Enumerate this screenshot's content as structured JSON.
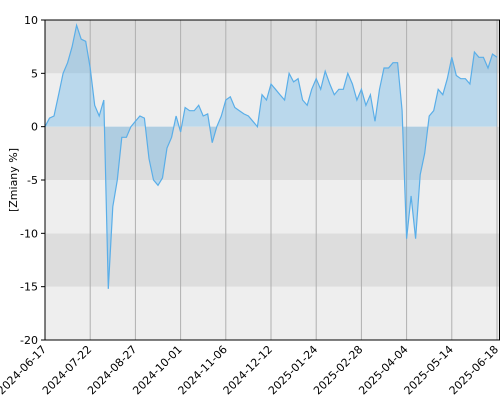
{
  "chart_data": {
    "type": "area",
    "y_label": "[Zmiany %]",
    "categories": [
      "2024-06-17",
      null,
      null,
      null,
      null,
      null,
      null,
      null,
      null,
      null,
      "2024-07-22",
      null,
      null,
      null,
      null,
      null,
      null,
      null,
      null,
      null,
      "2024-08-27",
      null,
      null,
      null,
      null,
      null,
      null,
      null,
      null,
      null,
      "2024-10-01",
      null,
      null,
      null,
      null,
      null,
      null,
      null,
      null,
      null,
      "2024-11-06",
      null,
      null,
      null,
      null,
      null,
      null,
      null,
      null,
      null,
      "2024-12-12",
      null,
      null,
      null,
      null,
      null,
      null,
      null,
      null,
      null,
      "2025-01-24",
      null,
      null,
      null,
      null,
      null,
      null,
      null,
      null,
      null,
      "2025-02-28",
      null,
      null,
      null,
      null,
      null,
      null,
      null,
      null,
      null,
      "2025-04-04",
      null,
      null,
      null,
      null,
      null,
      null,
      null,
      null,
      null,
      "2025-05-14",
      null,
      null,
      null,
      null,
      null,
      null,
      null,
      null,
      null,
      "2025-06-18"
    ],
    "values": [
      0,
      0.8,
      1,
      3,
      5,
      6,
      7.5,
      9.5,
      8.2,
      8,
      5.5,
      2,
      1,
      2.5,
      -15.2,
      -7.5,
      -5,
      -1,
      -1,
      0,
      0.5,
      1,
      0.8,
      -3,
      -5,
      -5.5,
      -4.8,
      -2,
      -1,
      1,
      -0.5,
      1.8,
      1.5,
      1.5,
      2,
      1,
      1.2,
      -1.5,
      0,
      1,
      2.5,
      2.8,
      1.8,
      1.5,
      1.2,
      1,
      0.5,
      0,
      3,
      2.5,
      4,
      3.5,
      3,
      2.5,
      5,
      4.2,
      4.5,
      2.5,
      2,
      3.5,
      4.5,
      3.5,
      5.2,
      4,
      3,
      3.5,
      3.5,
      5,
      4,
      2.5,
      3.5,
      2,
      3,
      0.5,
      3.5,
      5.5,
      5.5,
      6,
      6,
      1.5,
      -10.5,
      -6.5,
      -10.5,
      -4.5,
      -2.5,
      1,
      1.5,
      3.5,
      3,
      4.5,
      6.5,
      4.8,
      4.5,
      4.5,
      4,
      7,
      6.5,
      6.5,
      5.5,
      6.8,
      6.5
    ],
    "color": "#5aaee8",
    "ylim": [
      -20,
      10
    ],
    "yticks": [
      -20,
      -15,
      -10,
      -5,
      0,
      5,
      10
    ],
    "grid": true
  }
}
